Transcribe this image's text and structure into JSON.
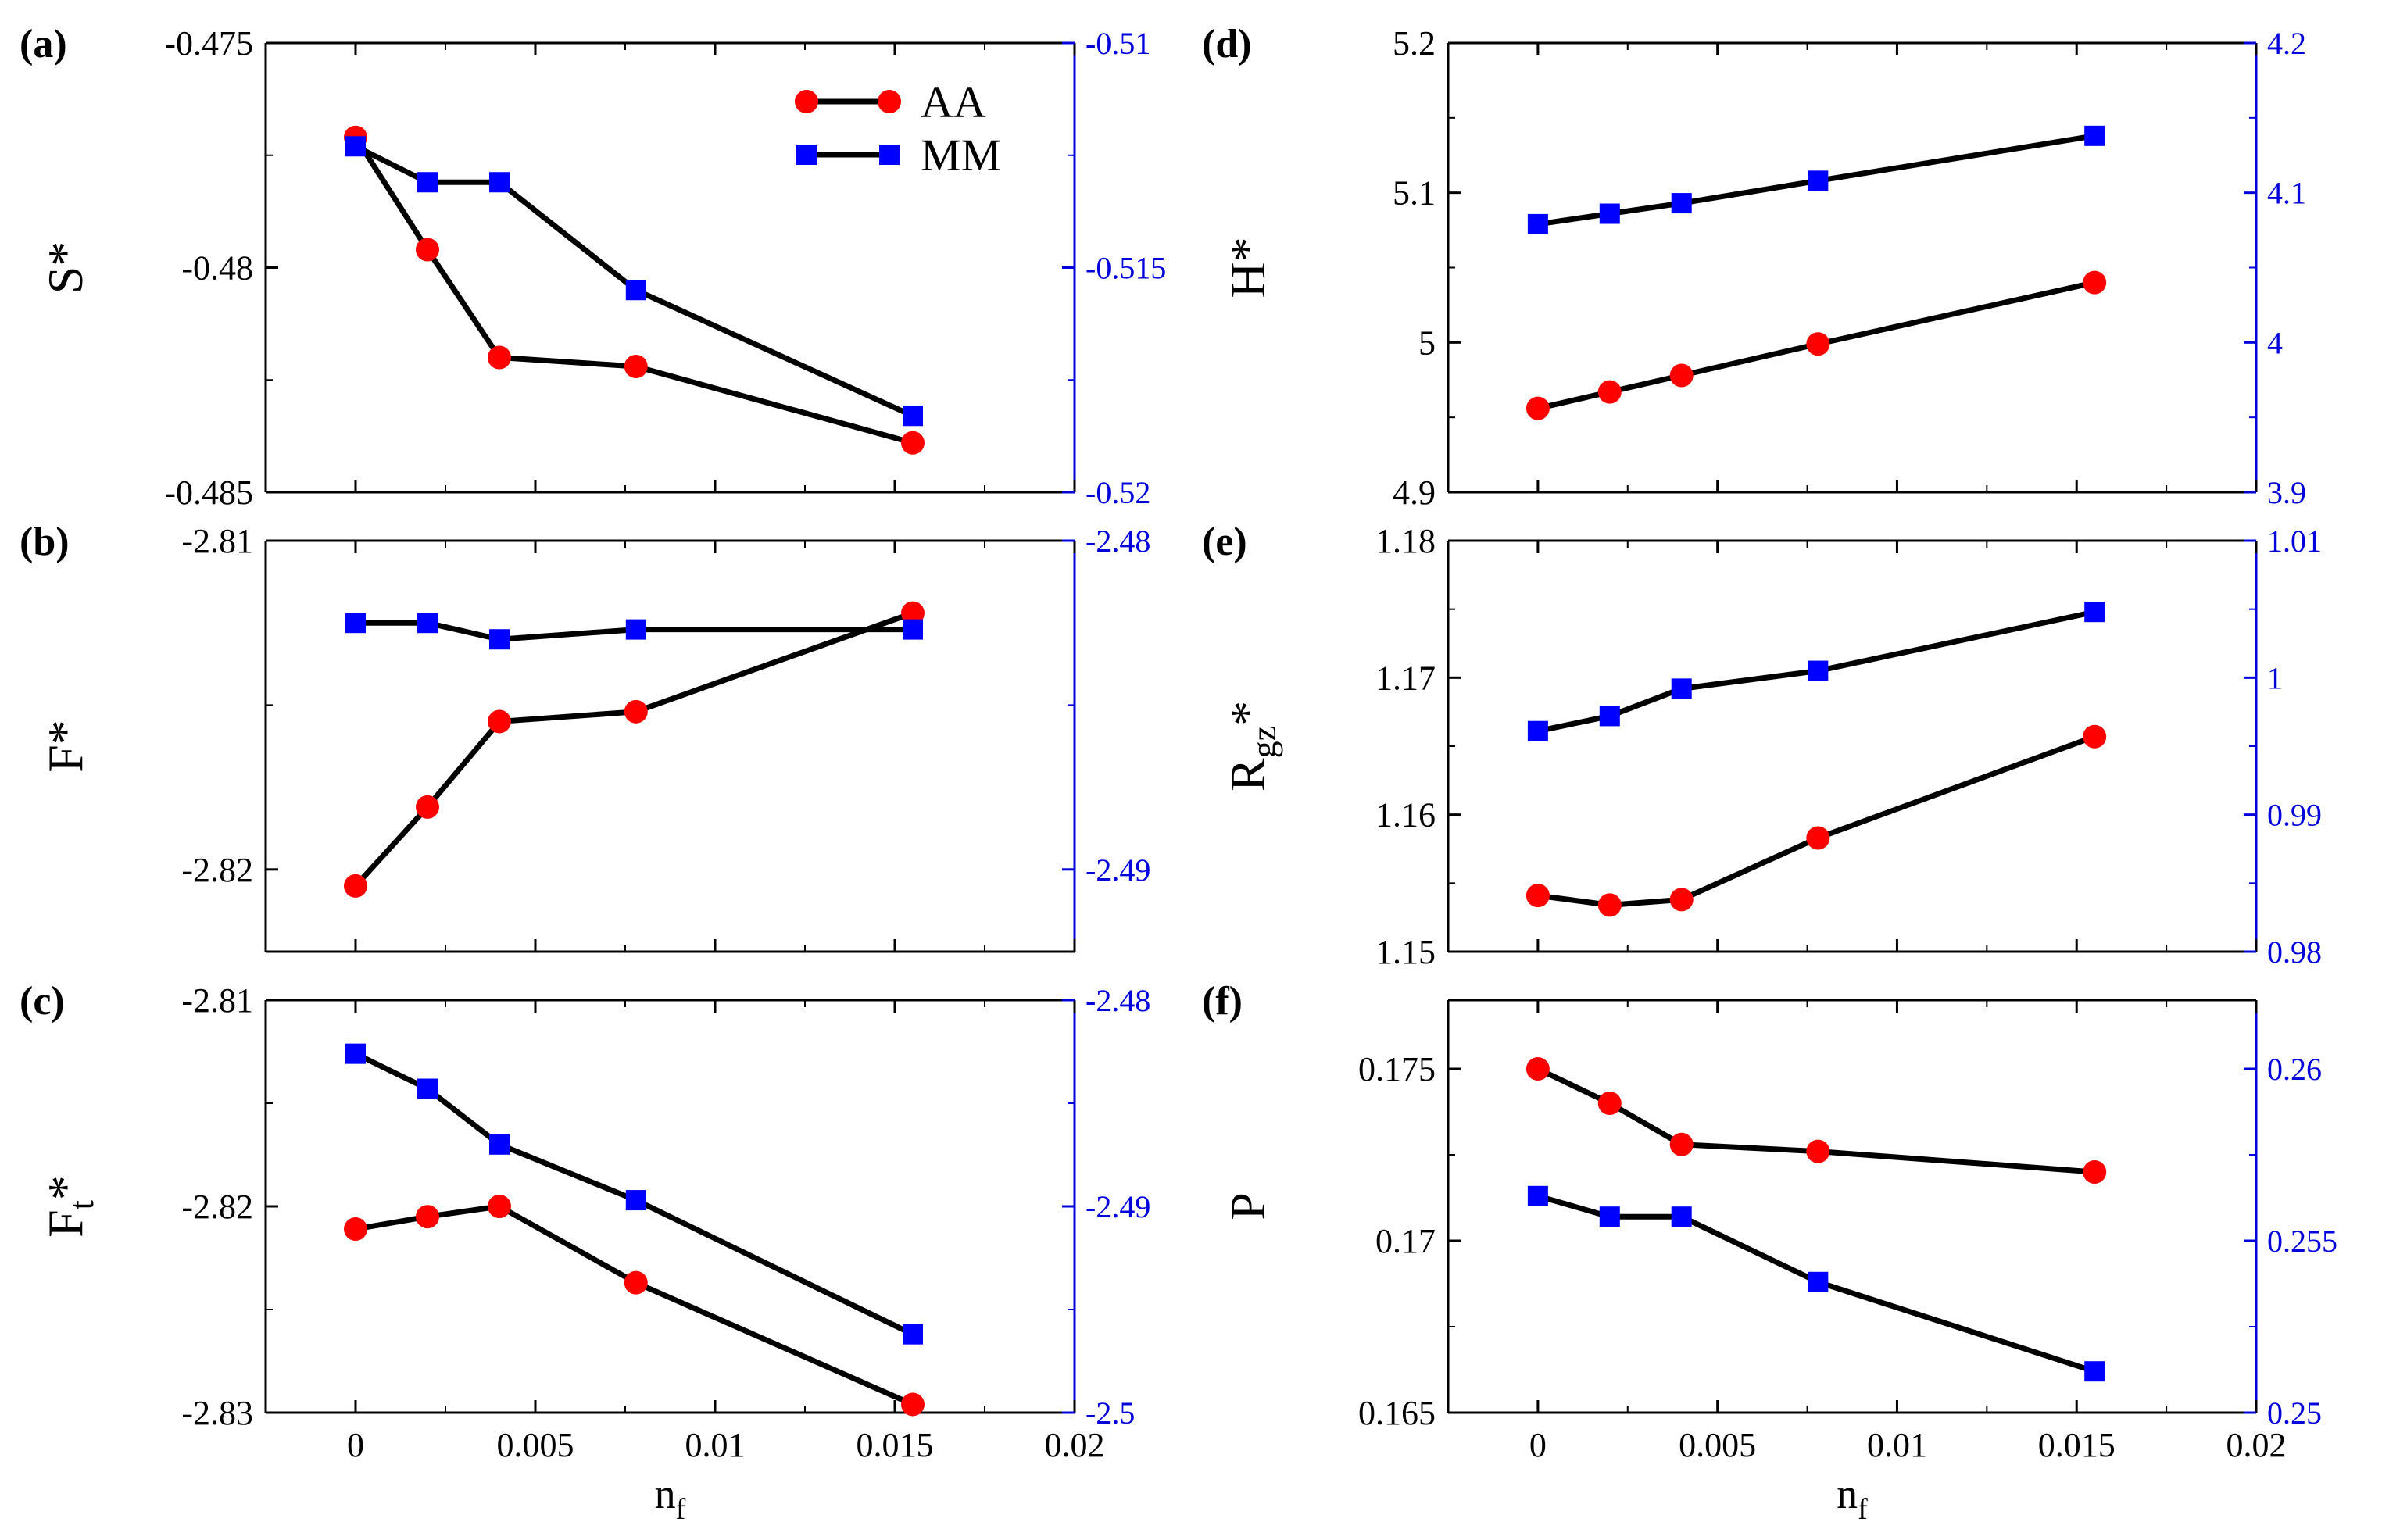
{
  "colors": {
    "aa": "#ff0000",
    "mm": "#0000ff",
    "line": "#000000",
    "right_axis": "#0000dd"
  },
  "legend": [
    {
      "name": "AA",
      "marker": "circle"
    },
    {
      "name": "MM",
      "marker": "square"
    }
  ],
  "xlabel_main": "n",
  "xlabel_sub": "f",
  "chart_data": [
    {
      "id": "a",
      "panel_label": "(a)",
      "type": "line",
      "ylabel_main": "S*",
      "ylabel_sub": "",
      "x": [
        0,
        0.002,
        0.004,
        0.0078,
        0.0155
      ],
      "xlim": [
        -0.0025,
        0.02
      ],
      "xticks": [
        0,
        0.005,
        0.01,
        0.015,
        0.02
      ],
      "xtick_labels": [
        "0",
        "0.005",
        "0.01",
        "0.015",
        "0.02"
      ],
      "show_xticklabels": false,
      "left": {
        "ylim": [
          -0.485,
          -0.475
        ],
        "ticks": [
          -0.485,
          -0.48,
          -0.475
        ],
        "tick_labels": [
          "-0.485",
          "-0.48",
          "-0.475"
        ]
      },
      "right": {
        "ylim": [
          -0.52,
          -0.51
        ],
        "ticks": [
          -0.52,
          -0.515,
          -0.51
        ],
        "tick_labels": [
          "-0.52",
          "-0.515",
          "-0.51"
        ]
      },
      "series": [
        {
          "name": "AA",
          "axis": "left",
          "values": [
            -0.4771,
            -0.4796,
            -0.482,
            -0.4822,
            -0.4839
          ]
        },
        {
          "name": "MM",
          "axis": "right",
          "values": [
            -0.5123,
            -0.5131,
            -0.5131,
            -0.5155,
            -0.5183
          ]
        }
      ]
    },
    {
      "id": "b",
      "panel_label": "(b)",
      "type": "line",
      "ylabel_main": "F*",
      "ylabel_sub": "",
      "x": [
        0,
        0.002,
        0.004,
        0.0078,
        0.0155
      ],
      "xlim": [
        -0.0025,
        0.02
      ],
      "xticks": [
        0,
        0.005,
        0.01,
        0.015,
        0.02
      ],
      "xtick_labels": [
        "0",
        "0.005",
        "0.01",
        "0.015",
        "0.02"
      ],
      "show_xticklabels": false,
      "left": {
        "ylim": [
          -2.8225,
          -2.81
        ],
        "ticks": [
          -2.82,
          -2.81
        ],
        "tick_labels": [
          "-2.82",
          "-2.81"
        ]
      },
      "right": {
        "ylim": [
          -2.4925,
          -2.48
        ],
        "ticks": [
          -2.49,
          -2.48
        ],
        "tick_labels": [
          "-2.49",
          "-2.48"
        ]
      },
      "series": [
        {
          "name": "AA",
          "axis": "left",
          "values": [
            -2.8205,
            -2.8181,
            -2.8155,
            -2.8152,
            -2.8122
          ]
        },
        {
          "name": "MM",
          "axis": "right",
          "values": [
            -2.4825,
            -2.4825,
            -2.483,
            -2.4827,
            -2.4827
          ]
        }
      ]
    },
    {
      "id": "c",
      "panel_label": "(c)",
      "type": "line",
      "ylabel_main": "F*",
      "ylabel_sub": "t",
      "x": [
        0,
        0.002,
        0.004,
        0.0078,
        0.0155
      ],
      "xlim": [
        -0.0025,
        0.02
      ],
      "xticks": [
        0,
        0.005,
        0.01,
        0.015,
        0.02
      ],
      "xtick_labels": [
        "0",
        "0.005",
        "0.01",
        "0.015",
        "0.02"
      ],
      "show_xticklabels": true,
      "left": {
        "ylim": [
          -2.83,
          -2.81
        ],
        "ticks": [
          -2.83,
          -2.82,
          -2.81
        ],
        "tick_labels": [
          "-2.83",
          "-2.82",
          "-2.81"
        ]
      },
      "right": {
        "ylim": [
          -2.5,
          -2.48
        ],
        "ticks": [
          -2.5,
          -2.49,
          -2.48
        ],
        "tick_labels": [
          "-2.5",
          "-2.49",
          "-2.48"
        ]
      },
      "series": [
        {
          "name": "AA",
          "axis": "left",
          "values": [
            -2.8211,
            -2.8205,
            -2.82,
            -2.8237,
            -2.8296
          ]
        },
        {
          "name": "MM",
          "axis": "right",
          "values": [
            -2.4826,
            -2.4843,
            -2.487,
            -2.4897,
            -2.4962
          ]
        }
      ]
    },
    {
      "id": "d",
      "panel_label": "(d)",
      "type": "line",
      "ylabel_main": "H*",
      "ylabel_sub": "",
      "x": [
        0,
        0.002,
        0.004,
        0.0078,
        0.0155
      ],
      "xlim": [
        -0.0025,
        0.02
      ],
      "xticks": [
        0,
        0.005,
        0.01,
        0.015,
        0.02
      ],
      "xtick_labels": [
        "0",
        "0.005",
        "0.01",
        "0.015",
        "0.02"
      ],
      "show_xticklabels": false,
      "left": {
        "ylim": [
          4.9,
          5.2
        ],
        "ticks": [
          4.9,
          5.0,
          5.1,
          5.2
        ],
        "tick_labels": [
          "4.9",
          "5",
          "5.1",
          "5.2"
        ]
      },
      "right": {
        "ylim": [
          3.9,
          4.2
        ],
        "ticks": [
          3.9,
          4.0,
          4.1,
          4.2
        ],
        "tick_labels": [
          "3.9",
          "4",
          "4.1",
          "4.2"
        ]
      },
      "series": [
        {
          "name": "AA",
          "axis": "left",
          "values": [
            4.956,
            4.967,
            4.978,
            4.999,
            5.04
          ]
        },
        {
          "name": "MM",
          "axis": "right",
          "values": [
            4.079,
            4.086,
            4.093,
            4.108,
            4.138
          ]
        }
      ]
    },
    {
      "id": "e",
      "panel_label": "(e)",
      "type": "line",
      "ylabel_main": "R*",
      "ylabel_sub": "gz",
      "x": [
        0,
        0.002,
        0.004,
        0.0078,
        0.0155
      ],
      "xlim": [
        -0.0025,
        0.02
      ],
      "xticks": [
        0,
        0.005,
        0.01,
        0.015,
        0.02
      ],
      "xtick_labels": [
        "0",
        "0.005",
        "0.01",
        "0.015",
        "0.02"
      ],
      "show_xticklabels": false,
      "left": {
        "ylim": [
          1.15,
          1.18
        ],
        "ticks": [
          1.15,
          1.16,
          1.17,
          1.18
        ],
        "tick_labels": [
          "1.15",
          "1.16",
          "1.17",
          "1.18"
        ]
      },
      "right": {
        "ylim": [
          0.98,
          1.01
        ],
        "ticks": [
          0.98,
          0.99,
          1.0,
          1.01
        ],
        "tick_labels": [
          "0.98",
          "0.99",
          "1",
          "1.01"
        ]
      },
      "series": [
        {
          "name": "AA",
          "axis": "left",
          "values": [
            1.1541,
            1.1534,
            1.1538,
            1.1583,
            1.1657
          ]
        },
        {
          "name": "MM",
          "axis": "right",
          "values": [
            0.9961,
            0.9972,
            0.9992,
            1.0005,
            1.0048
          ]
        }
      ]
    },
    {
      "id": "f",
      "panel_label": "(f)",
      "type": "line",
      "ylabel_main": "P",
      "ylabel_sub": "",
      "x": [
        0,
        0.002,
        0.004,
        0.0078,
        0.0155
      ],
      "xlim": [
        -0.0025,
        0.02
      ],
      "xticks": [
        0,
        0.005,
        0.01,
        0.015,
        0.02
      ],
      "xtick_labels": [
        "0",
        "0.005",
        "0.01",
        "0.015",
        "0.02"
      ],
      "show_xticklabels": true,
      "left": {
        "ylim": [
          0.165,
          0.177
        ],
        "ticks": [
          0.165,
          0.17,
          0.175
        ],
        "tick_labels": [
          "0.165",
          "0.17",
          "0.175"
        ]
      },
      "right": {
        "ylim": [
          0.25,
          0.262
        ],
        "ticks": [
          0.25,
          0.255,
          0.26
        ],
        "tick_labels": [
          "0.25",
          "0.255",
          "0.26"
        ]
      },
      "series": [
        {
          "name": "AA",
          "axis": "left",
          "values": [
            0.175,
            0.174,
            0.1728,
            0.1726,
            0.172
          ]
        },
        {
          "name": "MM",
          "axis": "right",
          "values": [
            0.2563,
            0.2557,
            0.2557,
            0.2538,
            0.2512
          ]
        }
      ]
    }
  ]
}
